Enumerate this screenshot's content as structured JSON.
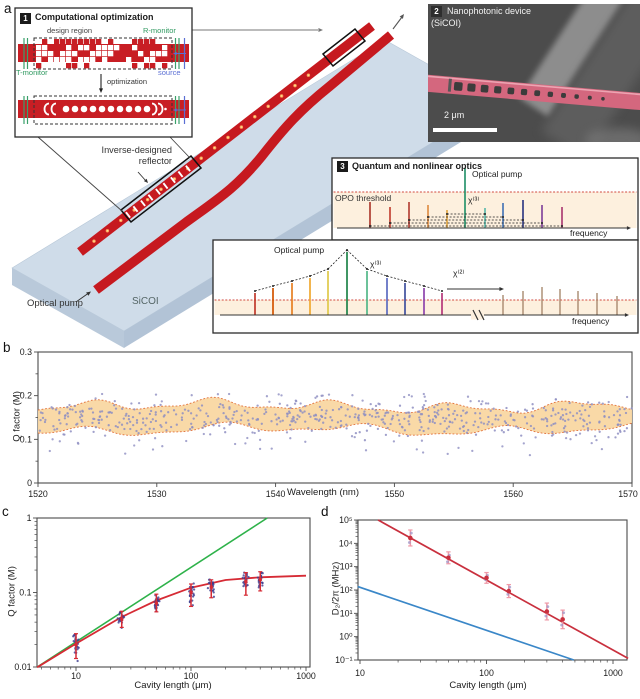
{
  "figure": {
    "panel_a": "a",
    "panel_b": "b",
    "panel_c": "c",
    "panel_d": "d"
  },
  "panel_a": {
    "inset1": {
      "badge": "1",
      "title": "Computational optimization",
      "design_region": "design region",
      "r_monitor": "R-monitor",
      "t_monitor": "T-monitor",
      "source": "source",
      "optimization": "optimization"
    },
    "device": {
      "reflector": "Inverse-designed\nreflector",
      "pump": "Optical pump",
      "substrate": "SiCOI"
    },
    "inset2": {
      "badge": "2",
      "title_line1": "Nanophotonic device",
      "title_line2": "(SiCOI)",
      "scale_bar": "2 μm"
    },
    "inset3": {
      "badge": "3",
      "title": "Quantum and nonlinear optics",
      "upper": {
        "threshold_label": "OPO threshold",
        "pump_label": "Optical pump",
        "chi3_label": "χ⁽³⁾",
        "freq_label": "frequency",
        "comb": [
          {
            "x": 370,
            "h": 26,
            "c": "#a93226"
          },
          {
            "x": 390,
            "h": 21,
            "c": "#c0392b"
          },
          {
            "x": 409,
            "h": 26,
            "c": "#b03a2e"
          },
          {
            "x": 428,
            "h": 23,
            "c": "#dd8a3d"
          },
          {
            "x": 447,
            "h": 18,
            "c": "#e0a23b"
          },
          {
            "x": 465,
            "h": 60,
            "c": "#1c8e66"
          },
          {
            "x": 485,
            "h": 20,
            "c": "#54b8aa"
          },
          {
            "x": 503,
            "h": 25,
            "c": "#3d6fb4"
          },
          {
            "x": 523,
            "h": 28,
            "c": "#28327e"
          },
          {
            "x": 542,
            "h": 23,
            "c": "#7d3c98"
          },
          {
            "x": 562,
            "h": 21,
            "c": "#a8336e"
          }
        ],
        "cascade": [
          [
            370,
            562,
            226
          ],
          [
            390,
            542,
            223
          ],
          [
            409,
            523,
            220
          ],
          [
            428,
            503,
            217
          ],
          [
            447,
            485,
            214
          ]
        ]
      },
      "lower": {
        "pump_label": "Optical pump",
        "chi3_label": "χ⁽³⁾",
        "chi2_label": "χ⁽²⁾",
        "freq_label": "frequency",
        "comb": [
          {
            "x": 255,
            "h": 22,
            "c": "#c0392b"
          },
          {
            "x": 273,
            "h": 27,
            "c": "#d35400"
          },
          {
            "x": 292,
            "h": 32,
            "c": "#e67e22"
          },
          {
            "x": 310,
            "h": 37,
            "c": "#efa830"
          },
          {
            "x": 328,
            "h": 44,
            "c": "#dfc94a"
          },
          {
            "x": 347,
            "h": 63,
            "c": "#1e8449"
          },
          {
            "x": 367,
            "h": 44,
            "c": "#52b788"
          },
          {
            "x": 387,
            "h": 37,
            "c": "#5c6bc0"
          },
          {
            "x": 405,
            "h": 32,
            "c": "#40509e"
          },
          {
            "x": 424,
            "h": 27,
            "c": "#8e44ad"
          },
          {
            "x": 442,
            "h": 22,
            "c": "#b5367a"
          }
        ],
        "chi2_comb": [
          {
            "x": 503,
            "h": 20
          },
          {
            "x": 523,
            "h": 24
          },
          {
            "x": 542,
            "h": 28
          },
          {
            "x": 560,
            "h": 26
          },
          {
            "x": 578,
            "h": 24
          },
          {
            "x": 597,
            "h": 22
          },
          {
            "x": 617,
            "h": 19
          }
        ],
        "chi2_color": "#a98a6e",
        "threshold_color": "#d1493f"
      }
    }
  },
  "chart_data": [
    {
      "panel": "b",
      "type": "scatter",
      "xlabel": "Wavelength (nm)",
      "ylabel": "Q factor (M)",
      "xlim": [
        1520,
        1570
      ],
      "ylim": [
        0,
        0.3
      ],
      "xticks": [
        1520,
        1530,
        1540,
        1550,
        1560,
        1570
      ],
      "yticks": [
        0,
        0.1,
        0.2,
        0.3
      ],
      "yminors": [
        0.05,
        0.15,
        0.25
      ],
      "band": {
        "center_q": 0.148,
        "halfwidth_q": 0.028,
        "fill": "#f9d7a2",
        "edge": "#e2713c"
      },
      "scatter": {
        "n_points": 600,
        "mean_q": 0.148,
        "std_q": 0.018,
        "dot_color": "#8f8fc2"
      }
    },
    {
      "panel": "c",
      "type": "scatter",
      "xscale": "log",
      "yscale": "log",
      "xlabel": "Cavity length (μm)",
      "ylabel": "Q factor (M)",
      "xlim": [
        4.6,
        1100
      ],
      "ylim": [
        0.01,
        1
      ],
      "xticks": [
        10,
        100,
        1000
      ],
      "yticks": [
        0.01,
        0.1,
        1
      ],
      "clusters": [
        {
          "L": 10,
          "q": 0.02,
          "lo": 0.013,
          "hi": 0.028
        },
        {
          "L": 25,
          "q": 0.044,
          "lo": 0.034,
          "hi": 0.056
        },
        {
          "L": 50,
          "q": 0.072,
          "lo": 0.055,
          "hi": 0.095
        },
        {
          "L": 100,
          "q": 0.1,
          "lo": 0.065,
          "hi": 0.13
        },
        {
          "L": 150,
          "q": 0.118,
          "lo": 0.085,
          "hi": 0.148
        },
        {
          "L": 300,
          "q": 0.14,
          "lo": 0.092,
          "hi": 0.185
        },
        {
          "L": 400,
          "q": 0.15,
          "lo": 0.105,
          "hi": 0.19
        }
      ],
      "lines": [
        {
          "name": "linear scaling",
          "color": "#2eb24a",
          "points": [
            [
              4.6,
              0.01
            ],
            [
              460,
              1.0
            ]
          ]
        },
        {
          "name": "saturating fit",
          "color": "#d62b35",
          "points": [
            [
              4.6,
              0.0099
            ],
            [
              10,
              0.0206
            ],
            [
              25,
              0.047
            ],
            [
              50,
              0.078
            ],
            [
              100,
              0.116
            ],
            [
              200,
              0.147
            ],
            [
              400,
              0.16
            ],
            [
              1000,
              0.168
            ]
          ]
        }
      ],
      "dot_color": "#3c3c8f",
      "errorbar_color": "#d62b35"
    },
    {
      "panel": "d",
      "type": "scatter",
      "xscale": "log",
      "yscale": "log",
      "xlabel": "Cavity length (μm)",
      "ylabel": "D₂/2π (MHz)",
      "xlim": [
        10,
        1320
      ],
      "ylim": [
        0.1,
        100000
      ],
      "xticks": [
        10,
        100,
        1000
      ],
      "yticks": [
        0.1,
        1,
        10,
        100,
        1000,
        10000,
        100000
      ],
      "ytick_labels": [
        "10⁻¹",
        "10⁰",
        "10¹",
        "10²",
        "10³",
        "10⁴",
        "10⁵"
      ],
      "points": [
        {
          "L": 25,
          "D2": 17000,
          "err": 2.2
        },
        {
          "L": 50,
          "D2": 2400,
          "err": 1.8
        },
        {
          "L": 100,
          "D2": 330,
          "err": 1.7
        },
        {
          "L": 150,
          "D2": 90,
          "err": 1.9
        },
        {
          "L": 300,
          "D2": 12,
          "err": 2.3
        },
        {
          "L": 400,
          "D2": 5.5,
          "err": 2.5
        }
      ],
      "lines": [
        {
          "name": "D2 fit",
          "color": "#c9303e",
          "points": [
            [
              13.9,
              100000
            ],
            [
              1316,
              0.117
            ]
          ]
        },
        {
          "name": "reference",
          "color": "#3a87c8",
          "points": [
            [
              9.6,
              140
            ],
            [
              490,
              0.1
            ]
          ]
        }
      ],
      "marker_color": "#c9303e",
      "errorbar_color": "#ef9aa8",
      "ghost_color": "#9e93c6"
    }
  ],
  "colors": {
    "waveguide_red": "#c6191f",
    "chip_top": "#cfdce9",
    "chip_side": "#b2c3d6",
    "peach": "#fdf0de",
    "threshold_red": "#d1493f",
    "sem_pink": "#d4677e",
    "sem_bg": "#4c4c4c"
  }
}
